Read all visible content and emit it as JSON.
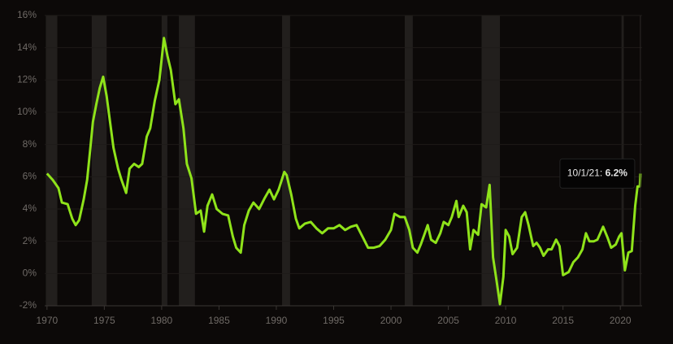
{
  "chart_data": {
    "type": "line",
    "x": [
      1970.0,
      1970.5,
      1971.0,
      1971.3,
      1971.8,
      1972.2,
      1972.5,
      1972.8,
      1973.2,
      1973.5,
      1973.8,
      1974.0,
      1974.3,
      1974.6,
      1974.9,
      1975.2,
      1975.5,
      1975.8,
      1976.2,
      1976.5,
      1976.9,
      1977.2,
      1977.6,
      1978.0,
      1978.3,
      1978.7,
      1979.0,
      1979.4,
      1979.8,
      1980.2,
      1980.5,
      1980.8,
      1981.2,
      1981.5,
      1981.9,
      1982.2,
      1982.6,
      1983.0,
      1983.4,
      1983.7,
      1984.0,
      1984.4,
      1984.8,
      1985.3,
      1985.8,
      1986.2,
      1986.5,
      1986.9,
      1987.2,
      1987.6,
      1988.0,
      1988.5,
      1989.0,
      1989.4,
      1989.8,
      1990.2,
      1990.7,
      1990.9,
      1991.3,
      1991.7,
      1992.0,
      1992.5,
      1993.0,
      1993.5,
      1994.0,
      1994.5,
      1995.0,
      1995.5,
      1996.0,
      1996.5,
      1997.0,
      1997.5,
      1998.0,
      1998.5,
      1999.0,
      1999.5,
      2000.0,
      2000.3,
      2000.8,
      2001.2,
      2001.6,
      2001.9,
      2002.3,
      2002.6,
      2003.0,
      2003.2,
      2003.5,
      2003.9,
      2004.3,
      2004.6,
      2005.0,
      2005.3,
      2005.7,
      2005.9,
      2006.3,
      2006.6,
      2006.9,
      2007.2,
      2007.6,
      2007.9,
      2008.3,
      2008.6,
      2008.9,
      2009.2,
      2009.5,
      2009.8,
      2010.0,
      2010.3,
      2010.6,
      2011.0,
      2011.4,
      2011.7,
      2012.0,
      2012.4,
      2012.7,
      2013.0,
      2013.3,
      2013.7,
      2014.0,
      2014.4,
      2014.7,
      2015.0,
      2015.5,
      2015.9,
      2016.3,
      2016.7,
      2017.0,
      2017.3,
      2017.7,
      2018.0,
      2018.5,
      2018.9,
      2019.2,
      2019.6,
      2019.9,
      2020.1,
      2020.4,
      2020.7,
      2021.0,
      2021.3,
      2021.5,
      2021.7,
      2021.75
    ],
    "series": [
      {
        "color": "#8fe31a",
        "values": [
          6.2,
          5.8,
          5.3,
          4.4,
          4.3,
          3.4,
          3.0,
          3.3,
          4.6,
          5.8,
          7.9,
          9.4,
          10.5,
          11.5,
          12.2,
          11.0,
          9.4,
          7.8,
          6.5,
          5.8,
          5.0,
          6.5,
          6.8,
          6.6,
          6.8,
          8.5,
          9.0,
          10.7,
          12.0,
          14.6,
          13.5,
          12.6,
          10.5,
          10.8,
          9.0,
          6.8,
          5.9,
          3.7,
          3.9,
          2.6,
          4.2,
          4.9,
          4.0,
          3.7,
          3.6,
          2.3,
          1.6,
          1.3,
          3.0,
          3.9,
          4.4,
          4.0,
          4.7,
          5.2,
          4.6,
          5.2,
          6.3,
          6.1,
          4.9,
          3.4,
          2.8,
          3.1,
          3.2,
          2.8,
          2.5,
          2.8,
          2.8,
          3.0,
          2.7,
          2.9,
          3.0,
          2.3,
          1.6,
          1.6,
          1.7,
          2.1,
          2.7,
          3.7,
          3.5,
          3.5,
          2.7,
          1.6,
          1.3,
          1.8,
          2.6,
          3.0,
          2.1,
          1.9,
          2.5,
          3.2,
          3.0,
          3.5,
          4.5,
          3.5,
          4.2,
          3.8,
          1.5,
          2.7,
          2.4,
          4.3,
          4.1,
          5.5,
          1.0,
          -0.4,
          -1.9,
          -0.2,
          2.7,
          2.3,
          1.2,
          1.6,
          3.5,
          3.8,
          3.0,
          1.7,
          1.9,
          1.6,
          1.1,
          1.5,
          1.5,
          2.1,
          1.7,
          -0.1,
          0.1,
          0.7,
          1.0,
          1.5,
          2.5,
          2.0,
          2.0,
          2.1,
          2.9,
          2.2,
          1.6,
          1.8,
          2.3,
          2.5,
          0.2,
          1.3,
          1.4,
          4.2,
          5.4,
          5.4,
          6.2
        ]
      }
    ],
    "recessions": [
      [
        1969.9,
        1970.9
      ],
      [
        1973.9,
        1975.2
      ],
      [
        1980.0,
        1980.5
      ],
      [
        1981.5,
        1982.9
      ],
      [
        1990.5,
        1991.2
      ],
      [
        2001.2,
        2001.9
      ],
      [
        2007.9,
        2009.5
      ],
      [
        2020.1,
        2020.3
      ]
    ],
    "xlim": [
      1969.8,
      2021.9
    ],
    "xticks": [
      1970,
      1975,
      1980,
      1985,
      1990,
      1995,
      2000,
      2005,
      2010,
      2015,
      2020
    ],
    "ylim": [
      -2,
      16
    ],
    "yticks": [
      {
        "value": -2,
        "label": "-2%"
      },
      {
        "value": 0,
        "label": "0%"
      },
      {
        "value": 2,
        "label": "2%"
      },
      {
        "value": 4,
        "label": "4%"
      },
      {
        "value": 6,
        "label": "6%"
      },
      {
        "value": 8,
        "label": "8%"
      },
      {
        "value": 10,
        "label": "10%"
      },
      {
        "value": 12,
        "label": "12%"
      },
      {
        "value": 14,
        "label": "14%"
      },
      {
        "value": 16,
        "label": "16%"
      }
    ],
    "grid": true,
    "tooltip": {
      "date": "10/1/21:",
      "value": 6.2,
      "value_label": "6.2%"
    }
  }
}
